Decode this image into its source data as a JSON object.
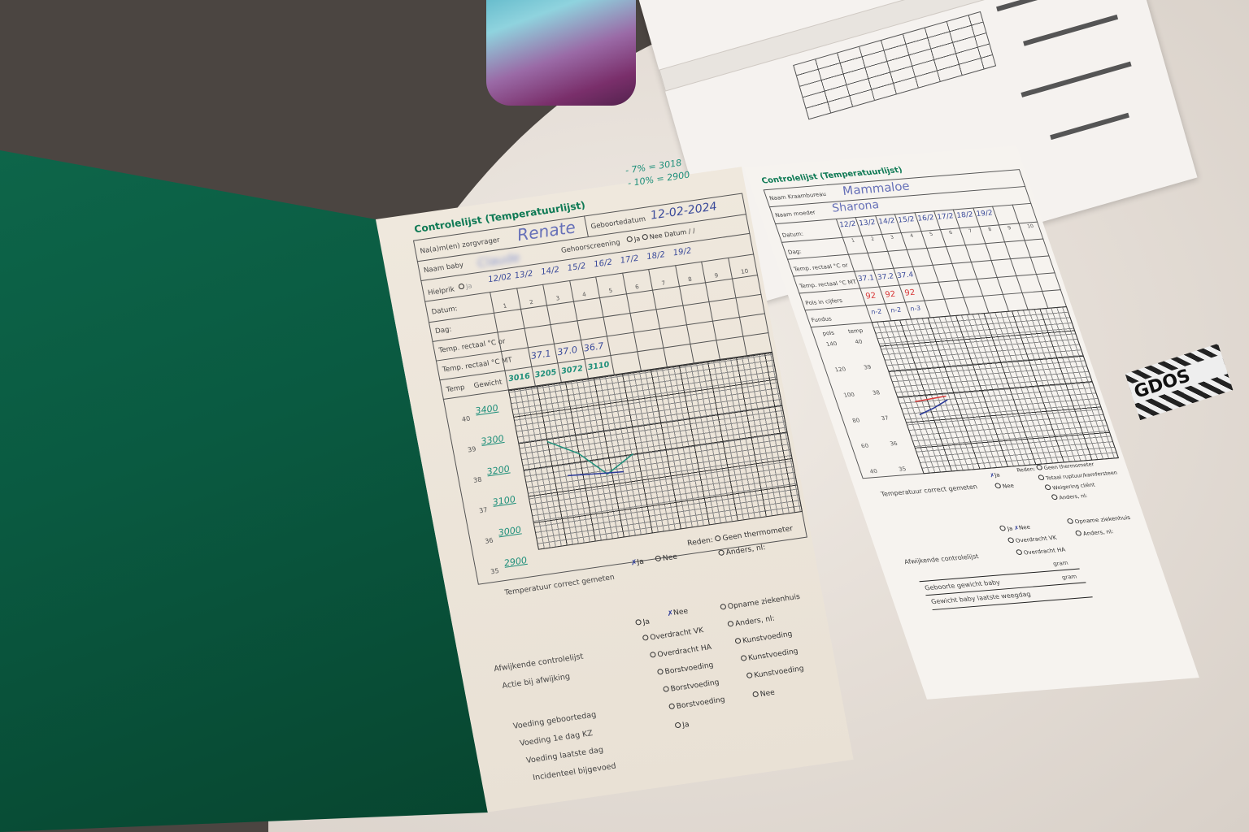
{
  "left_page": {
    "title": "Controlelijst (Temperatuurlijst)",
    "note_top": [
      "- 7% = 3018",
      "- 10% = 2900"
    ],
    "fields": {
      "name_label": "Na(a)m(en) zorgvrager",
      "name_value": "Renate",
      "birthdate_label": "Geboortedatum",
      "birthdate_value": "12-02-2024",
      "baby_label": "Naam baby",
      "baby_value": "Claude",
      "hearing_label": "Gehoorscreening",
      "hearing_ja": "Ja",
      "hearing_nee": "Nee",
      "hearing_date": "Datum  /  /",
      "heel_label": "Hielprik",
      "heel_ja": "Ja"
    },
    "row_labels": [
      "Datum:",
      "Dag:",
      "Temp. rectaal °C or",
      "Temp. rectaal °C MT",
      "Temp",
      "Gewicht"
    ],
    "dates": [
      "12/02",
      "13/2",
      "14/2",
      "15/2",
      "16/2",
      "17/2",
      "18/2",
      "19/2",
      "",
      ""
    ],
    "day_numbers": [
      "1",
      "2",
      "3",
      "4",
      "5",
      "6",
      "7",
      "8",
      "9",
      "10"
    ],
    "temps_mt": [
      "37.1",
      "37.0",
      "36.7"
    ],
    "weights": [
      "3016",
      "3205",
      "3072",
      "3110"
    ],
    "temp_axis": [
      "40",
      "39",
      "38",
      "37",
      "36",
      "35"
    ],
    "weight_axis": [
      "3400",
      "3300",
      "3200",
      "3100",
      "3000",
      "2900"
    ],
    "temp_correct_label": "Temperatuur correct gemeten",
    "temp_correct_ja": "Ja",
    "temp_correct_nee": "Nee",
    "reason_label": "Reden:",
    "reason_opts": [
      "Geen thermometer",
      "Anders, nl:"
    ],
    "deviation_label": "Afwijkende controlelijst",
    "deviation_ja": "Ja",
    "deviation_nee": "Nee",
    "action_label": "Actie bij afwijking",
    "action_opts": [
      "Overdracht VK",
      "Overdracht HA",
      "Opname ziekenhuis",
      "Anders, nl:"
    ],
    "feeding_labels": [
      "Voeding geboortedag",
      "Voeding 1e dag KZ",
      "Voeding laatste dag",
      "Incidenteel bijgevoed"
    ],
    "breast": "Borstvoeding",
    "formula": "Kunstvoeding",
    "ja": "Ja",
    "nee": "Nee"
  },
  "right_page": {
    "title": "Controlelijst (Temperatuurlijst)",
    "kraambureau_label": "Naam Kraambureau",
    "kraambureau_value": "Mammaloe",
    "mother_label": "Naam moeder",
    "mother_value": "Sharona",
    "row_labels": [
      "Datum:",
      "Dag:",
      "Temp. rectaal °C or",
      "Temp. rectaal °C MT",
      "Pols in cijfers",
      "Fundus"
    ],
    "dates": [
      "12/2",
      "13/2",
      "14/2",
      "15/2",
      "16/2",
      "17/2",
      "18/2",
      "19/2"
    ],
    "day_numbers": [
      "1",
      "2",
      "3",
      "4",
      "5",
      "6",
      "7",
      "8",
      "9",
      "10"
    ],
    "temps": [
      "37.1",
      "37.2",
      "37.4"
    ],
    "pulse": [
      "92",
      "92",
      "92"
    ],
    "fundus": [
      "n-2",
      "n-2",
      "n-3"
    ],
    "pulse_axis_label": "pols",
    "temp_axis_label": "temp",
    "pulse_axis": [
      "140",
      "120",
      "100",
      "80",
      "60",
      "40"
    ],
    "temp_axis": [
      "40",
      "39",
      "38",
      "37",
      "36",
      "35"
    ],
    "temp_correct_label": "Temperatuur correct gemeten",
    "ja": "Ja",
    "nee": "Nee",
    "reason_label": "Reden:",
    "reason_opts": [
      "Geen thermometer",
      "Totaal ruptuur/kamfersteen",
      "Weigering cliënt",
      "Anders, nl:"
    ],
    "deviation_label": "Afwijkende controlelijst",
    "action_opts": [
      "Overdracht VK",
      "Overdracht HA",
      "Opname ziekenhuis",
      "Anders, nl:"
    ],
    "birth_weight_label": "Geboorte gewicht baby",
    "last_weight_label": "Gewicht baby laatste weegdag",
    "gram": "gram"
  },
  "sticker": "GDOS",
  "colors": {
    "cover": "#0a5a41",
    "form_green": "#0f7a55",
    "ink_blue": "#3a4a9a",
    "ink_teal": "#1e8f7a",
    "ink_red": "#d83a3a"
  }
}
